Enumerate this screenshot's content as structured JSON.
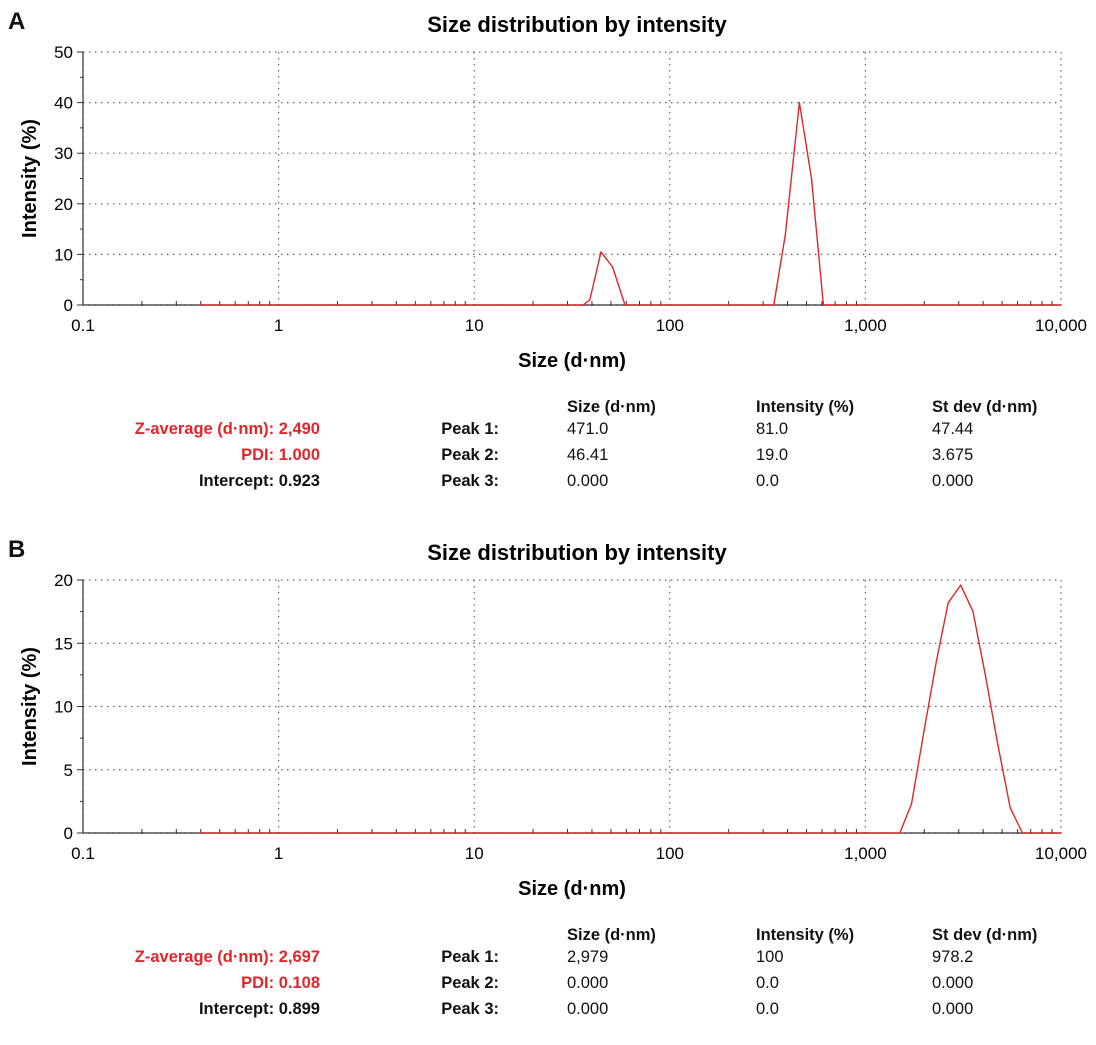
{
  "colors": {
    "series": "#e0262b",
    "grid": "#666666",
    "axis": "#333333",
    "highlight": "#e0262b"
  },
  "chart_data": [
    {
      "panel": "A",
      "type": "line",
      "title": "Size distribution by intensity",
      "xlabel": "Size (d·nm)",
      "ylabel": "Intensity (%)",
      "xscale": "log",
      "xlim": [
        0.1,
        10000
      ],
      "ylim": [
        0,
        50
      ],
      "xticks": [
        0.1,
        1,
        10,
        100,
        1000,
        10000
      ],
      "xtick_labels": [
        "0.1",
        "1",
        "10",
        "100",
        "1,000",
        "10,000"
      ],
      "yticks": [
        0,
        10,
        20,
        30,
        40,
        50
      ],
      "ytick_labels": [
        "0",
        "10",
        "20",
        "30",
        "40",
        "50"
      ],
      "grid": true,
      "series": [
        {
          "x": [
            0.4,
            36,
            39,
            44.5,
            51,
            59,
            340,
            390,
            460,
            530,
            610,
            10000
          ],
          "y": [
            0,
            0,
            1,
            10.5,
            7.5,
            0,
            0,
            14,
            40,
            25,
            0,
            0
          ]
        }
      ]
    },
    {
      "panel": "B",
      "type": "line",
      "title": "Size distribution by intensity",
      "xlabel": "Size (d·nm)",
      "ylabel": "Intensity (%)",
      "xscale": "log",
      "xlim": [
        0.1,
        10000
      ],
      "ylim": [
        0,
        20
      ],
      "xticks": [
        0.1,
        1,
        10,
        100,
        1000,
        10000
      ],
      "xtick_labels": [
        "0.1",
        "1",
        "10",
        "100",
        "1,000",
        "10,000"
      ],
      "yticks": [
        0,
        5,
        10,
        15,
        20
      ],
      "ytick_labels": [
        "0",
        "5",
        "10",
        "15",
        "20"
      ],
      "grid": true,
      "series": [
        {
          "x": [
            0.4,
            1500,
            1720,
            1990,
            2300,
            2650,
            3070,
            3550,
            4100,
            4750,
            5500,
            6350,
            10000
          ],
          "y": [
            0,
            0,
            2.3,
            8,
            13.5,
            18.2,
            19.6,
            17.5,
            12.5,
            7,
            2,
            0,
            0
          ]
        }
      ]
    }
  ],
  "panels": [
    {
      "letter": "A",
      "stats": {
        "z_average": "Z-average (d·nm): 2,490",
        "pdi": "PDI: 1.000",
        "intercept": "Intercept: 0.923"
      },
      "table": {
        "headers": [
          "Size (d·nm)",
          "Intensity (%)",
          "St dev (d·nm)"
        ],
        "rows": [
          {
            "label": "Peak 1:",
            "size": "471.0",
            "intensity": "81.0",
            "stdev": "47.44"
          },
          {
            "label": "Peak 2:",
            "size": "46.41",
            "intensity": "19.0",
            "stdev": "3.675"
          },
          {
            "label": "Peak 3:",
            "size": "0.000",
            "intensity": "0.0",
            "stdev": "0.000"
          }
        ]
      }
    },
    {
      "letter": "B",
      "stats": {
        "z_average": "Z-average (d·nm): 2,697",
        "pdi": "PDI: 0.108",
        "intercept": "Intercept: 0.899"
      },
      "table": {
        "headers": [
          "Size (d·nm)",
          "Intensity (%)",
          "St dev (d·nm)"
        ],
        "rows": [
          {
            "label": "Peak 1:",
            "size": "2,979",
            "intensity": "100",
            "stdev": "978.2"
          },
          {
            "label": "Peak 2:",
            "size": "0.000",
            "intensity": "0.0",
            "stdev": "0.000"
          },
          {
            "label": "Peak 3:",
            "size": "0.000",
            "intensity": "0.0",
            "stdev": "0.000"
          }
        ]
      }
    }
  ]
}
